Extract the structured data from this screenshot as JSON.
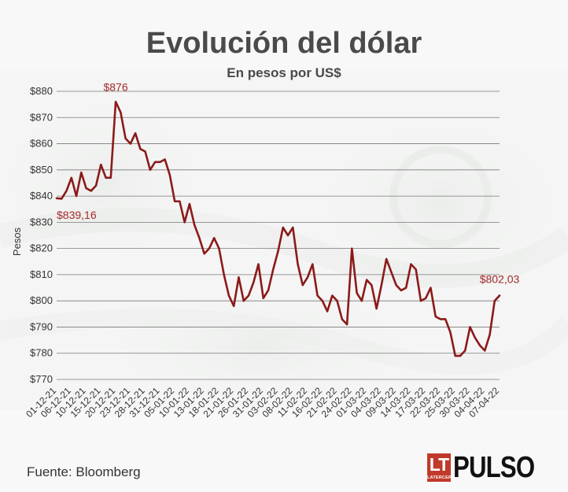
{
  "header": {
    "title": "Evolución del dólar",
    "subtitle": "En pesos por US$"
  },
  "footer": {
    "source": "Fuente: Bloomberg",
    "logo_letters": "LT",
    "logo_small": "LATERCERA",
    "logo_brand": "PULSO"
  },
  "colors": {
    "line": "#8b1a1a",
    "annotation": "#a52a2a",
    "grid": "#7a7a7a",
    "text": "#333333",
    "title": "#4a4a4a",
    "logo_red": "#c0392b"
  },
  "chart_data": {
    "type": "line",
    "title": "Evolución del dólar",
    "subtitle": "En pesos por US$",
    "xlabel": "",
    "ylabel": "Pesos",
    "ylim": [
      770,
      880
    ],
    "yticks": [
      880,
      870,
      860,
      850,
      840,
      830,
      820,
      810,
      800,
      790,
      780,
      770
    ],
    "ytick_labels": [
      "$880",
      "$870",
      "$860",
      "$850",
      "$840",
      "$830",
      "$820",
      "$810",
      "$800",
      "$790",
      "$780",
      "$770"
    ],
    "xtick_labels": [
      "01-12-21",
      "06-12-21",
      "10-12-21",
      "15-12-21",
      "20-12-21",
      "23-12-21",
      "28-12-21",
      "31-12-21",
      "05-01-22",
      "10-01-22",
      "13-01-22",
      "18-01-22",
      "21-01-22",
      "26-01-22",
      "31-01-22",
      "03-02-22",
      "08-02-22",
      "11-02-22",
      "16-02-22",
      "21-02-22",
      "24-02-22",
      "01-03-22",
      "04-03-22",
      "09-03-22",
      "14-03-22",
      "17-03-22",
      "22-03-22",
      "25-03-22",
      "30-03-22",
      "04-04-22",
      "07-04-22"
    ],
    "grid": true,
    "legend": "none",
    "values": [
      839.16,
      839,
      842,
      847,
      840,
      849,
      843,
      842,
      844,
      852,
      847,
      847,
      876,
      872,
      862,
      860,
      864,
      858,
      857,
      850,
      853,
      853,
      854,
      848,
      838,
      838,
      830,
      837,
      829,
      824,
      818,
      820,
      824,
      820,
      810,
      802,
      798,
      809,
      800,
      802,
      807,
      814,
      801,
      804,
      812,
      819,
      828,
      825,
      828,
      814,
      806,
      809,
      814,
      802,
      800,
      796,
      802,
      800,
      793,
      791,
      820,
      803,
      800,
      808,
      806,
      797,
      806,
      816,
      811,
      806,
      804,
      805,
      814,
      812,
      800,
      801,
      805,
      794,
      793,
      793,
      788,
      779,
      779,
      781,
      790,
      786,
      783,
      781,
      787,
      800,
      802.03
    ],
    "annotations": [
      {
        "label": "$839,16",
        "index": 0,
        "value": 839.16
      },
      {
        "label": "$876",
        "index": 12,
        "value": 876
      },
      {
        "label": "$802,03",
        "index": 90,
        "value": 802.03
      }
    ]
  }
}
